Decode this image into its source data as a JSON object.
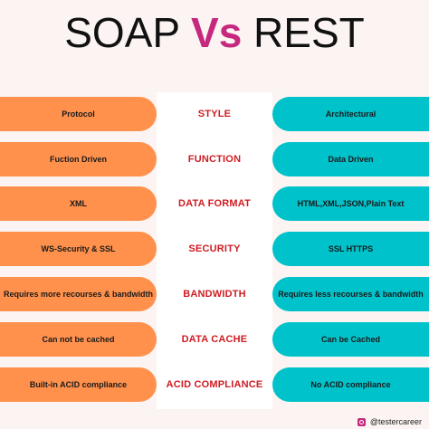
{
  "title": {
    "left": "SOAP ",
    "vs": "Vs",
    "right": " REST"
  },
  "colors": {
    "soap": "#ff914d",
    "rest": "#00c2cb",
    "label": "#d01c22",
    "vs": "#c6287e",
    "background": "#fbf4f2"
  },
  "rows": [
    {
      "label": "STYLE",
      "soap": "Protocol",
      "rest": "Architectural"
    },
    {
      "label": "FUNCTION",
      "soap": "Fuction Driven",
      "rest": "Data Driven"
    },
    {
      "label": "DATA FORMAT",
      "soap": "XML",
      "rest": "HTML,XML,JSON,Plain Text"
    },
    {
      "label": "SECURITY",
      "soap": "WS-Security & SSL",
      "rest": "SSL HTTPS"
    },
    {
      "label": "BANDWIDTH",
      "soap": "Requires more recourses & bandwidth",
      "rest": "Requires less recourses & bandwidth"
    },
    {
      "label": "DATA CACHE",
      "soap": "Can not be cached",
      "rest": "Can be Cached"
    },
    {
      "label": "ACID COMPLIANCE",
      "soap": "Built-in ACID compliance",
      "rest": "No ACID compliance"
    }
  ],
  "footer": {
    "icon": "instagram-icon",
    "handle": "@testercareer"
  }
}
